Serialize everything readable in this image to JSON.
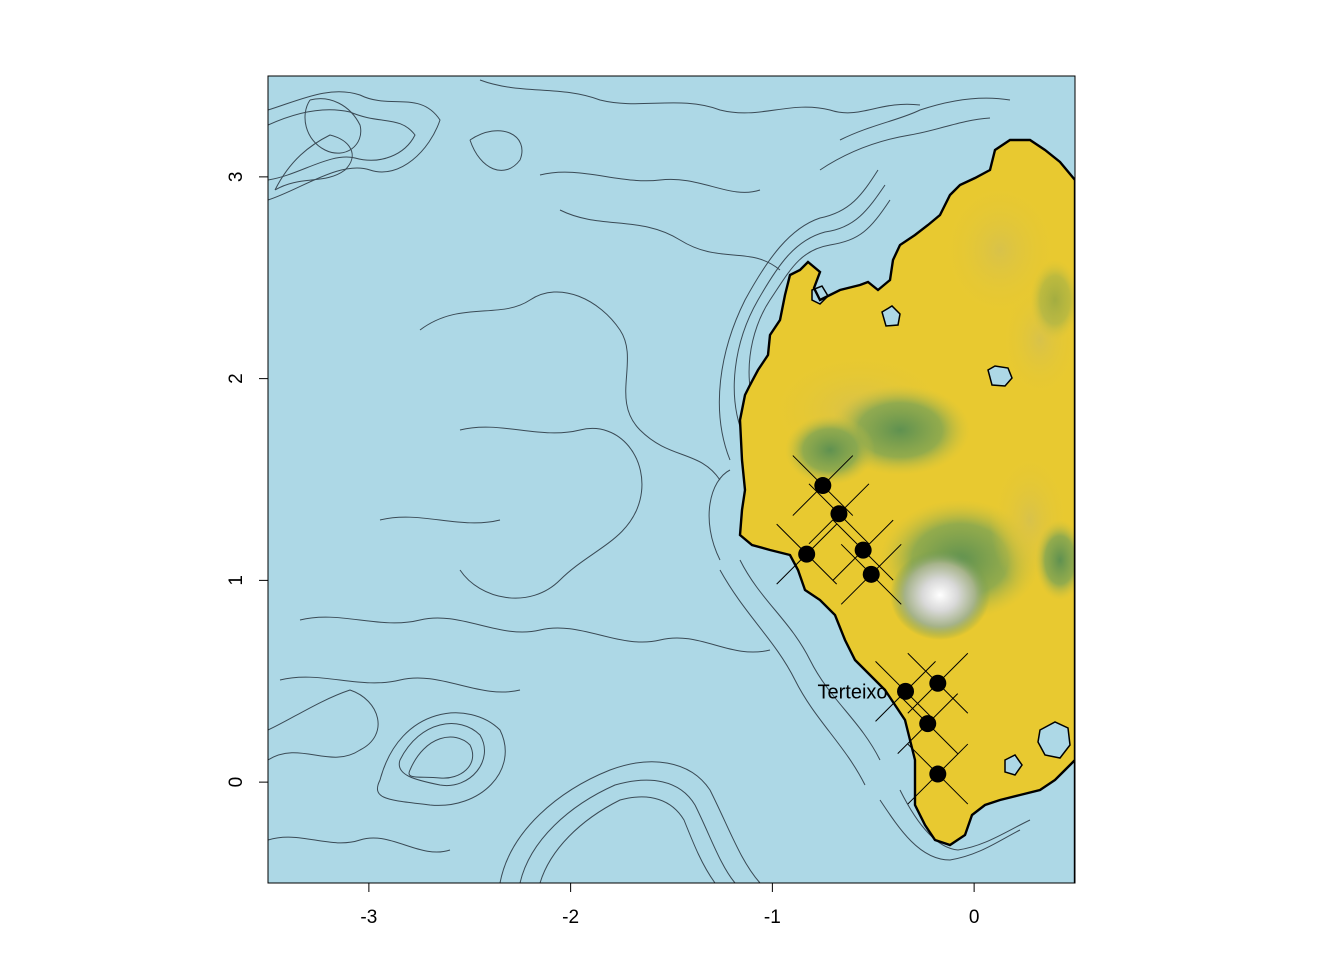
{
  "chart_data": {
    "type": "map",
    "xlim": [
      -3.5,
      0.5
    ],
    "ylim": [
      -0.5,
      3.5
    ],
    "x_ticks": [
      -3,
      -2,
      -1,
      0
    ],
    "y_ticks": [
      0,
      1,
      2,
      3
    ],
    "x_tick_labels": [
      "-3",
      "-2",
      "-1",
      "0"
    ],
    "y_tick_labels": [
      "0",
      "1",
      "2",
      "3"
    ],
    "background_color": "#add8e6",
    "land_colors": [
      "#e8c930",
      "#d8c640",
      "#a7b259",
      "#6e9a4e",
      "#c9c9c9",
      "#ffffff"
    ],
    "coastline_color": "#000000",
    "contour_color": "#3a4a55",
    "points": [
      {
        "x": -0.75,
        "y": 1.47
      },
      {
        "x": -0.67,
        "y": 1.33
      },
      {
        "x": -0.83,
        "y": 1.13
      },
      {
        "x": -0.55,
        "y": 1.15
      },
      {
        "x": -0.51,
        "y": 1.03
      },
      {
        "x": -0.34,
        "y": 0.45
      },
      {
        "x": -0.18,
        "y": 0.49
      },
      {
        "x": -0.23,
        "y": 0.29
      },
      {
        "x": -0.18,
        "y": 0.04
      }
    ],
    "annotations": [
      {
        "text": "Terteixo",
        "x": -0.34,
        "y": 0.45
      }
    ]
  }
}
